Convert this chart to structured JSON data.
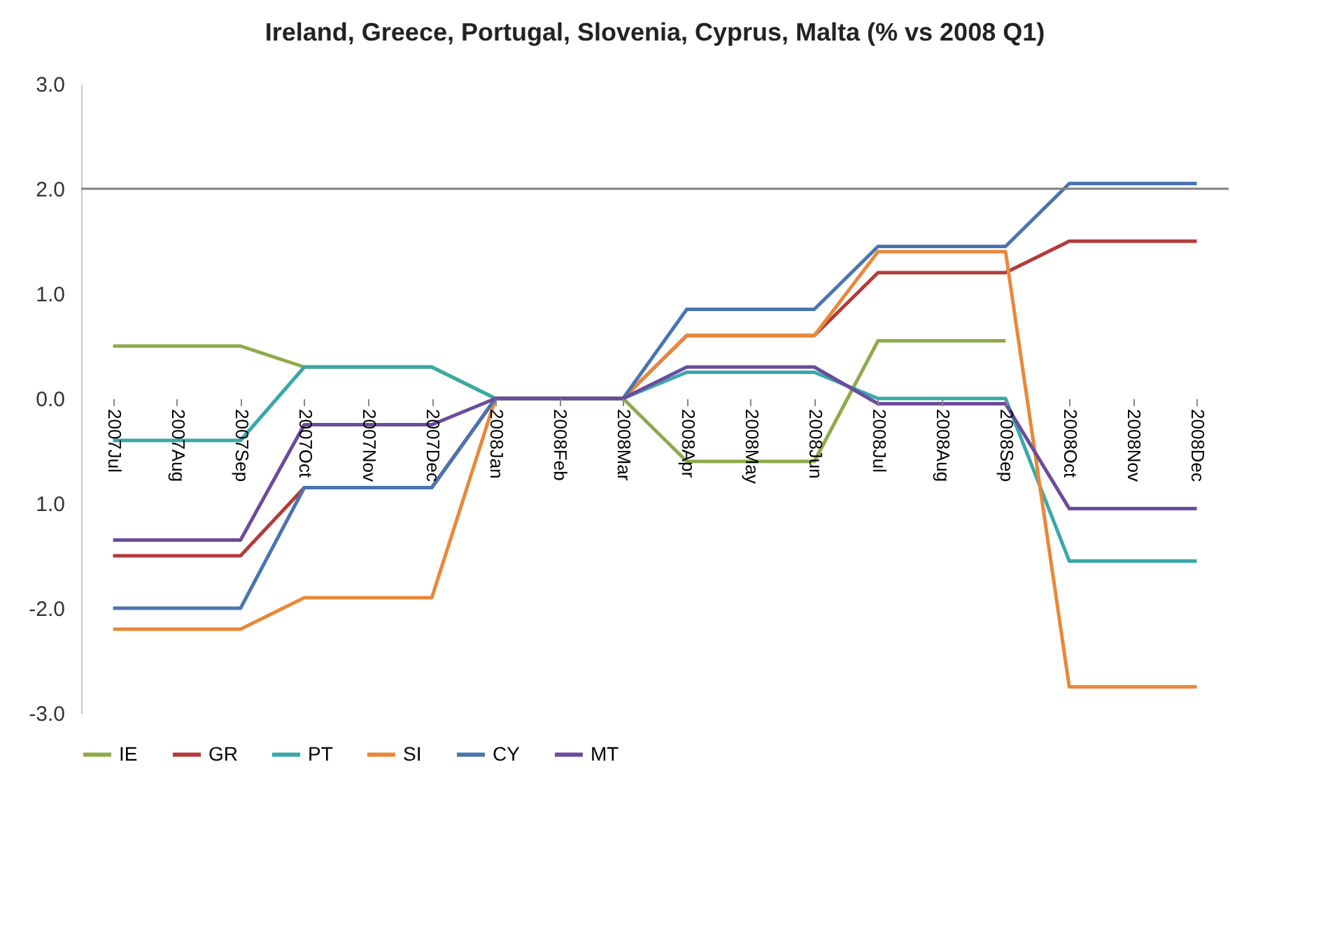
{
  "chart_data": {
    "type": "line",
    "title": "Ireland, Greece, Portugal, Slovenia, Cyprus, Malta (% vs 2008 Q1)",
    "categories": [
      "2007Jul",
      "2007Aug",
      "2007Sep",
      "2007Oct",
      "2007Nov",
      "2007Dec",
      "2008Jan",
      "2008Feb",
      "2008Mar",
      "2008Apr",
      "2008May",
      "2008Jun",
      "2008Jul",
      "2008Aug",
      "2008Sep",
      "2008Oct",
      "2008Nov",
      "2008Dec"
    ],
    "series": [
      {
        "name": "IE",
        "color": "#8faa4a",
        "values": [
          0.5,
          0.5,
          0.5,
          0.3,
          0.3,
          0.3,
          0,
          0,
          0,
          -0.6,
          -0.6,
          -0.6,
          0.55,
          0.55,
          0.55,
          null,
          null,
          null
        ]
      },
      {
        "name": "GR",
        "color": "#b33b3b",
        "values": [
          -1.5,
          -1.5,
          -1.5,
          -0.85,
          -0.85,
          -0.85,
          0,
          0,
          0,
          0.6,
          0.6,
          0.6,
          1.2,
          1.2,
          1.2,
          1.5,
          1.5,
          1.5
        ]
      },
      {
        "name": "PT",
        "color": "#3aa8a8",
        "values": [
          -0.4,
          -0.4,
          -0.4,
          0.3,
          0.3,
          0.3,
          0,
          0,
          0,
          0.25,
          0.25,
          0.25,
          0,
          0,
          0,
          -1.55,
          -1.55,
          -1.55
        ]
      },
      {
        "name": "SI",
        "color": "#e8883a",
        "values": [
          -2.2,
          -2.2,
          -2.2,
          -1.9,
          -1.9,
          -1.9,
          0,
          0,
          0,
          0.6,
          0.6,
          0.6,
          1.4,
          1.4,
          1.4,
          -2.75,
          -2.75,
          -2.75
        ]
      },
      {
        "name": "CY",
        "color": "#4a74b0",
        "values": [
          -2.0,
          -2.0,
          -2.0,
          -0.85,
          -0.85,
          -0.85,
          0,
          0,
          0,
          0.85,
          0.85,
          0.85,
          1.45,
          1.45,
          1.45,
          2.05,
          2.05,
          2.05
        ]
      },
      {
        "name": "MT",
        "color": "#6a4c9c",
        "values": [
          -1.35,
          -1.35,
          -1.35,
          -0.25,
          -0.25,
          -0.25,
          0,
          0,
          0,
          0.3,
          0.3,
          0.3,
          -0.05,
          -0.05,
          -0.05,
          -1.05,
          -1.05,
          -1.05
        ]
      }
    ],
    "ylim": [
      -3,
      3
    ],
    "yticks": [
      {
        "value": -3,
        "label": "-3.0"
      },
      {
        "value": -2,
        "label": "-2.0"
      },
      {
        "value": -1,
        "label": "1.0"
      },
      {
        "value": 0,
        "label": "0.0"
      },
      {
        "value": 1,
        "label": "1.0"
      },
      {
        "value": 2,
        "label": "2.0"
      },
      {
        "value": 3,
        "label": "3.0"
      }
    ],
    "ref_lines": [
      {
        "axis": "y",
        "value": 2,
        "color": "#808080"
      }
    ],
    "grid": false,
    "legend": "bottom"
  }
}
